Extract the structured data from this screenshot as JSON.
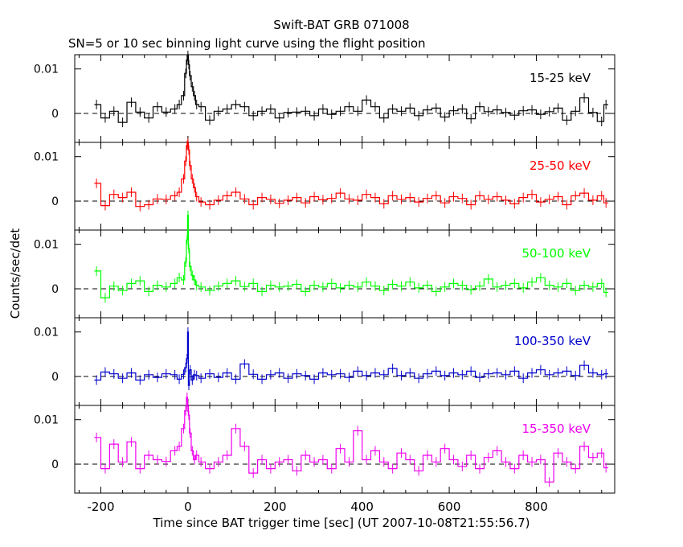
{
  "chart_data": {
    "type": "line",
    "title": "Swift-BAT GRB 071008",
    "subtitle": "SN=5 or 10 sec binning light curve using the flight position",
    "xlabel": "Time since BAT trigger time [sec] (UT 2007-10-08T21:55:56.7)",
    "ylabel": "Counts/sec/det",
    "xlim": [
      -260,
      980
    ],
    "x_ticks": [
      "-200",
      "0",
      "200",
      "400",
      "600",
      "800"
    ],
    "x_tick_values": [
      -200,
      0,
      200,
      400,
      600,
      800
    ],
    "panels": [
      {
        "name": "15-25 keV",
        "color": "#000000",
        "ylim": [
          -0.0065,
          0.0132
        ],
        "y_ticks": [
          "0",
          "0.01"
        ],
        "y_tick_values": [
          0,
          0.01
        ],
        "x": [
          -210,
          -190,
          -170,
          -150,
          -130,
          -110,
          -90,
          -70,
          -50,
          -30,
          -20,
          -10,
          -5,
          -2,
          0,
          2,
          5,
          10,
          15,
          20,
          30,
          50,
          70,
          90,
          110,
          130,
          150,
          170,
          190,
          210,
          230,
          250,
          270,
          290,
          310,
          330,
          350,
          370,
          390,
          410,
          430,
          450,
          470,
          490,
          510,
          530,
          550,
          570,
          590,
          610,
          630,
          650,
          670,
          690,
          710,
          730,
          750,
          770,
          790,
          810,
          830,
          850,
          870,
          890,
          910,
          930,
          950,
          960
        ],
        "y": [
          0.002,
          -0.001,
          0.0005,
          -0.002,
          0.0025,
          0.0003,
          -0.001,
          0.0015,
          0.0003,
          0.001,
          0.002,
          0.004,
          0.009,
          0.012,
          0.013,
          0.011,
          0.0085,
          0.006,
          0.004,
          0.002,
          0.0015,
          -0.0015,
          0.0005,
          0.001,
          0.002,
          0.0015,
          -0.0005,
          0.0005,
          0.001,
          -0.001,
          0.0002,
          0.0003,
          0.0005,
          -0.0005,
          0.001,
          -0.0002,
          0.0005,
          0.0015,
          0.0005,
          0.003,
          0.0015,
          -0.001,
          0.001,
          0.0005,
          0.0012,
          -0.0005,
          0.0008,
          0.0012,
          -0.0008,
          0.0006,
          0.001,
          -0.0012,
          0.0015,
          0.0004,
          0.0008,
          0.0002,
          -0.0004,
          0.0006,
          0.0008,
          -0.0002,
          0.0004,
          0.0012,
          -0.0015,
          0.0005,
          0.0035,
          0.0002,
          -0.0018,
          0.002
        ]
      },
      {
        "name": "25-50 keV",
        "color": "#ff0000",
        "ylim": [
          -0.0065,
          0.0132
        ],
        "y_ticks": [
          "0",
          "0.01"
        ],
        "y_tick_values": [
          0,
          0.01
        ],
        "x": [
          -210,
          -190,
          -170,
          -150,
          -130,
          -110,
          -90,
          -70,
          -50,
          -30,
          -20,
          -10,
          -5,
          -2,
          0,
          2,
          5,
          10,
          15,
          20,
          30,
          50,
          70,
          90,
          110,
          130,
          150,
          170,
          190,
          210,
          230,
          250,
          270,
          290,
          310,
          330,
          350,
          370,
          390,
          410,
          430,
          450,
          470,
          490,
          510,
          530,
          550,
          570,
          590,
          610,
          630,
          650,
          670,
          690,
          710,
          730,
          750,
          770,
          790,
          810,
          830,
          850,
          870,
          890,
          910,
          930,
          950,
          960
        ],
        "y": [
          0.004,
          -0.001,
          0.0015,
          0.0008,
          0.002,
          -0.0012,
          -0.0008,
          0.0005,
          0.0004,
          0.0012,
          0.002,
          0.005,
          0.009,
          0.0125,
          0.013,
          0.0115,
          0.008,
          0.005,
          0.003,
          0.001,
          -0.0002,
          -0.0008,
          0.0002,
          0.0012,
          0.002,
          0.0005,
          -0.0008,
          0.0008,
          0.0004,
          -0.0005,
          0.0002,
          0.0008,
          -0.0004,
          0.001,
          0.0003,
          0.0006,
          0.0018,
          0.0005,
          0.0002,
          0.0015,
          0.0008,
          -0.0006,
          0.0012,
          0.0004,
          0.0008,
          -0.0002,
          0.0006,
          0.0012,
          -0.0004,
          0.001,
          0.0006,
          -0.0008,
          0.0012,
          0.0004,
          0.001,
          0.0002,
          -0.0006,
          0.0008,
          0.0015,
          -0.0002,
          0.0004,
          0.001,
          -0.0008,
          0.0012,
          0.0018,
          0.0002,
          0.0012,
          -0.0004
        ]
      },
      {
        "name": "50-100 keV",
        "color": "#00ff00",
        "ylim": [
          -0.0065,
          0.0132
        ],
        "y_ticks": [
          "0",
          "0.01"
        ],
        "y_tick_values": [
          0,
          0.01
        ],
        "x": [
          -210,
          -190,
          -170,
          -150,
          -130,
          -110,
          -90,
          -70,
          -50,
          -30,
          -20,
          -10,
          -5,
          -2,
          0,
          2,
          5,
          10,
          15,
          20,
          30,
          50,
          70,
          90,
          110,
          130,
          150,
          170,
          190,
          210,
          230,
          250,
          270,
          290,
          310,
          330,
          350,
          370,
          390,
          410,
          430,
          450,
          470,
          490,
          510,
          530,
          550,
          570,
          590,
          610,
          630,
          650,
          670,
          690,
          710,
          730,
          750,
          770,
          790,
          810,
          830,
          850,
          870,
          890,
          910,
          930,
          950,
          960
        ],
        "y": [
          0.004,
          -0.002,
          0.0006,
          -0.0004,
          0.0012,
          0.0018,
          -0.0006,
          0.0008,
          0.0004,
          0.0012,
          0.0025,
          0.002,
          0.006,
          0.011,
          0.0165,
          0.009,
          0.005,
          0.003,
          0.002,
          0.0008,
          0.0004,
          -0.0004,
          0.0006,
          0.0012,
          0.0018,
          0.0005,
          0.0012,
          -0.0006,
          0.0008,
          0.0004,
          0.0006,
          0.001,
          -0.0006,
          0.0008,
          0.0004,
          0.0012,
          0.0002,
          0.0008,
          0.0004,
          0.0015,
          0.0006,
          -0.0004,
          0.001,
          0.0006,
          0.0015,
          0.0002,
          0.0008,
          -0.0006,
          0.0004,
          0.0012,
          0.0008,
          -0.0002,
          0.0006,
          0.0022,
          0.0004,
          0.0008,
          0.0012,
          0.0002,
          0.0015,
          0.0025,
          0.0008,
          0.0004,
          0.0012,
          -0.0004,
          0.0008,
          0.0004,
          0.0012,
          -0.0008
        ]
      },
      {
        "name": "100-350 keV",
        "color": "#0000cc",
        "ylim": [
          -0.0065,
          0.0132
        ],
        "y_ticks": [
          "0",
          "0.01"
        ],
        "y_tick_values": [
          0,
          0.01
        ],
        "x": [
          -210,
          -190,
          -170,
          -150,
          -130,
          -110,
          -90,
          -70,
          -50,
          -30,
          -20,
          -10,
          -5,
          -2,
          0,
          2,
          5,
          10,
          15,
          20,
          30,
          50,
          70,
          90,
          110,
          130,
          150,
          170,
          190,
          210,
          230,
          250,
          270,
          290,
          310,
          330,
          350,
          370,
          390,
          410,
          430,
          450,
          470,
          490,
          510,
          530,
          550,
          570,
          590,
          610,
          630,
          650,
          670,
          690,
          710,
          730,
          750,
          770,
          790,
          810,
          830,
          850,
          870,
          890,
          910,
          930,
          950,
          960
        ],
        "y": [
          -0.0008,
          0.001,
          0.0006,
          -0.0004,
          0.0008,
          -0.0008,
          0.0004,
          -0.0002,
          0.0006,
          0.0004,
          -0.0006,
          0.0005,
          0.002,
          0.004,
          0.01,
          -0.002,
          0.0015,
          -0.0008,
          0.0004,
          0.0002,
          -0.0004,
          0.0006,
          -0.0002,
          0.0008,
          -0.0006,
          0.0028,
          0.0005,
          -0.0006,
          0.0004,
          0.0008,
          -0.0004,
          0.0006,
          0.0002,
          -0.0006,
          0.0008,
          0.0004,
          0.0006,
          -0.0002,
          0.0012,
          0.0002,
          0.0008,
          0.0004,
          0.0018,
          0.0002,
          0.0008,
          -0.0004,
          0.0006,
          0.0012,
          0.0002,
          0.0008,
          0.0004,
          0.0012,
          -0.0002,
          0.0006,
          0.0008,
          0.0004,
          0.0012,
          -0.0004,
          0.0008,
          0.0015,
          0.0004,
          0.0008,
          0.0012,
          0.0002,
          0.0025,
          0.0008,
          0.0004,
          0.0006
        ]
      },
      {
        "name": "15-350 keV",
        "color": "#ee00ee",
        "ylim": [
          -0.0065,
          0.0132
        ],
        "y_ticks": [
          "0",
          "0.01"
        ],
        "y_tick_values": [
          0,
          0.01
        ],
        "x": [
          -210,
          -190,
          -170,
          -150,
          -130,
          -110,
          -90,
          -70,
          -50,
          -30,
          -20,
          -10,
          -5,
          -2,
          0,
          2,
          5,
          10,
          15,
          20,
          30,
          50,
          70,
          90,
          110,
          130,
          150,
          170,
          190,
          210,
          230,
          250,
          270,
          290,
          310,
          330,
          350,
          370,
          390,
          410,
          430,
          450,
          470,
          490,
          510,
          530,
          550,
          570,
          590,
          610,
          630,
          650,
          670,
          690,
          710,
          730,
          750,
          770,
          790,
          810,
          830,
          850,
          870,
          890,
          910,
          930,
          950,
          960
        ],
        "y": [
          0.006,
          -0.001,
          0.0045,
          0.0005,
          0.005,
          -0.001,
          0.002,
          0.001,
          0.0006,
          0.003,
          0.004,
          0.008,
          0.012,
          0.015,
          0.013,
          0.011,
          0.007,
          0.003,
          0.001,
          0.002,
          0.0005,
          -0.001,
          0.0005,
          0.002,
          0.008,
          0.004,
          -0.002,
          0.001,
          -0.001,
          0.0005,
          0.001,
          -0.0015,
          0.002,
          0.0005,
          0.001,
          -0.001,
          0.0035,
          0.0005,
          0.0075,
          0.001,
          0.003,
          0.0005,
          -0.001,
          0.0025,
          0.001,
          -0.0015,
          0.002,
          0.0005,
          0.0035,
          0.001,
          -0.0005,
          0.002,
          -0.001,
          0.0015,
          0.003,
          0.0005,
          -0.001,
          0.002,
          0.0005,
          0.001,
          -0.004,
          0.0025,
          0.0005,
          -0.001,
          0.004,
          0.0015,
          0.0025,
          -0.0008
        ]
      }
    ]
  }
}
